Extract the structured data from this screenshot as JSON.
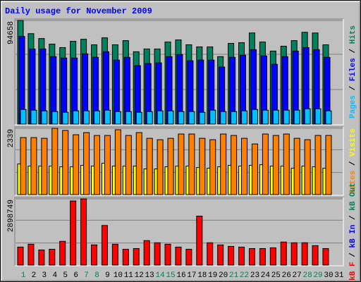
{
  "title": "Daily usage for November 2009",
  "legend_separator": " / ",
  "categories": [
    "1",
    "2",
    "3",
    "4",
    "5",
    "6",
    "7",
    "8",
    "9",
    "10",
    "11",
    "12",
    "13",
    "14",
    "15",
    "16",
    "17",
    "18",
    "19",
    "20",
    "21",
    "22",
    "23",
    "24",
    "25",
    "26",
    "27",
    "28",
    "29",
    "30",
    "31"
  ],
  "category_colors": [
    "#00805C",
    "#000000",
    "#000000",
    "#000000",
    "#000000",
    "#000000",
    "#00805C",
    "#00805C",
    "#000000",
    "#000000",
    "#000000",
    "#000000",
    "#000000",
    "#00805C",
    "#00805C",
    "#000000",
    "#000000",
    "#000000",
    "#000000",
    "#000000",
    "#00805C",
    "#00805C",
    "#000000",
    "#000000",
    "#000000",
    "#000000",
    "#000000",
    "#00805C",
    "#00805C",
    "#000000",
    "#000000"
  ],
  "chart_data": [
    {
      "type": "bar",
      "ylim": [
        0,
        94658
      ],
      "yticks": [
        94658
      ],
      "series": [
        {
          "name": "Hits",
          "color": "#00805C",
          "values": [
            94658,
            82589,
            78142,
            73060,
            69883,
            75601,
            77507,
            72424,
            78778,
            72424,
            76236,
            66071,
            68612,
            68612,
            74966,
            76871,
            72424,
            70518,
            70518,
            61623,
            73695,
            74330,
            83224,
            74966,
            66706,
            71153,
            76236,
            83859,
            83224,
            72424,
            null
          ]
        },
        {
          "name": "Files",
          "color": "#0000FF",
          "values": [
            80048,
            68612,
            68612,
            61623,
            60353,
            60353,
            64165,
            60988,
            66071,
            58447,
            60988,
            53365,
            55271,
            55906,
            61623,
            63529,
            57812,
            58447,
            58447,
            52094,
            60988,
            62894,
            67977,
            62259,
            54636,
            61623,
            66706,
            69883,
            67977,
            60988,
            null
          ]
        },
        {
          "name": "Pages",
          "color": "#00C0FF",
          "values": [
            13341,
            12706,
            12071,
            11435,
            10800,
            12071,
            12071,
            12071,
            12706,
            11435,
            11435,
            10800,
            11435,
            12071,
            12071,
            11435,
            11435,
            10800,
            12706,
            11435,
            11435,
            12071,
            13341,
            12706,
            12706,
            12706,
            12706,
            13976,
            13976,
            12071,
            null
          ]
        }
      ]
    },
    {
      "type": "bar",
      "ylim": [
        0,
        2339
      ],
      "yticks": [
        2339
      ],
      "series": [
        {
          "name": "Visits",
          "color": "#FFFF00",
          "values": [
            1081,
            1006,
            1006,
            1006,
            981,
            981,
            1031,
            1006,
            1107,
            1006,
            1006,
            1006,
            905,
            905,
            981,
            1006,
            1006,
            956,
            931,
            981,
            1031,
            1006,
            1031,
            1056,
            1006,
            1006,
            931,
            1006,
            981,
            931,
            null
          ]
        },
        {
          "name": "Sites",
          "color": "#FF8000",
          "values": [
            2012,
            2012,
            1987,
            2339,
            2264,
            2113,
            2188,
            2087,
            2087,
            2289,
            2087,
            2188,
            1987,
            1937,
            1987,
            2138,
            2138,
            1987,
            1937,
            2138,
            2087,
            1987,
            1786,
            2138,
            2087,
            2138,
            1987,
            1937,
            2087,
            2087,
            null
          ]
        }
      ]
    },
    {
      "type": "bar",
      "ylim": [
        0,
        2898749
      ],
      "yticks": [
        2898749
      ],
      "series": [
        {
          "name": "kB Out",
          "color": "#00805C"
        },
        {
          "name": "kB In",
          "color": "#0000FF"
        },
        {
          "name": "kB F",
          "color": "#FF0000",
          "values": [
            787700,
            913732,
            661668,
            693176,
            1039764,
            2804212,
            2898749,
            882224,
            1732940,
            913732,
            693176,
            724684,
            1071272,
            976748,
            913732,
            787700,
            693176,
            2142544,
            976748,
            882224,
            819208,
            787700,
            724684,
            724684,
            756192,
            1008256,
            976748,
            976748,
            850716,
            724684,
            null
          ]
        }
      ]
    }
  ]
}
